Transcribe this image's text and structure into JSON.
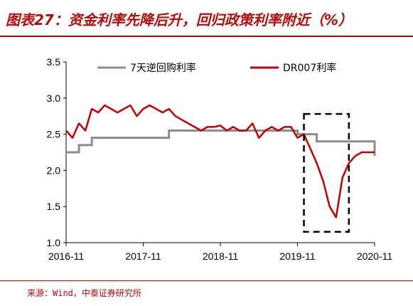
{
  "title": "图表27：资金利率先降后升，回归政策利率附近（%）",
  "source": "来源：Wind，中泰证券研究所",
  "chart_data": {
    "type": "line",
    "ylim": [
      1.0,
      3.5
    ],
    "yticks": [
      "1.0",
      "1.5",
      "2.0",
      "2.5",
      "3.0",
      "3.5"
    ],
    "xticks": [
      "2016-11",
      "2017-11",
      "2018-11",
      "2019-11",
      "2020-11"
    ],
    "xlim": [
      "2016-11",
      "2020-11"
    ],
    "legend": "top",
    "grid": false,
    "colors": {
      "series1": "#8c8c8c",
      "series2": "#c00000",
      "box": "#000000"
    },
    "series": [
      {
        "name": "7天逆回购利率",
        "x": [
          "2016-11",
          "2017-01",
          "2017-03",
          "2018-03",
          "2019-10",
          "2019-11",
          "2020-02",
          "2020-11"
        ],
        "values": [
          2.25,
          2.35,
          2.45,
          2.55,
          2.55,
          2.5,
          2.4,
          2.2
        ]
      },
      {
        "name": "DR007利率",
        "x": [
          "2016-11",
          "2016-12",
          "2017-01",
          "2017-02",
          "2017-03",
          "2017-04",
          "2017-05",
          "2017-06",
          "2017-07",
          "2017-08",
          "2017-09",
          "2017-10",
          "2017-11",
          "2017-12",
          "2018-01",
          "2018-02",
          "2018-03",
          "2018-04",
          "2018-05",
          "2018-06",
          "2018-07",
          "2018-08",
          "2018-09",
          "2018-10",
          "2018-11",
          "2018-12",
          "2019-01",
          "2019-02",
          "2019-03",
          "2019-04",
          "2019-05",
          "2019-06",
          "2019-07",
          "2019-08",
          "2019-09",
          "2019-10",
          "2019-11",
          "2019-12",
          "2020-01",
          "2020-02",
          "2020-03",
          "2020-04",
          "2020-05",
          "2020-06",
          "2020-07",
          "2020-08",
          "2020-09",
          "2020-10",
          "2020-11"
        ],
        "values": [
          2.55,
          2.45,
          2.65,
          2.55,
          2.85,
          2.8,
          2.9,
          2.85,
          2.8,
          2.85,
          2.9,
          2.75,
          2.85,
          2.9,
          2.85,
          2.8,
          2.85,
          2.75,
          2.7,
          2.65,
          2.6,
          2.55,
          2.6,
          2.6,
          2.62,
          2.55,
          2.6,
          2.55,
          2.55,
          2.65,
          2.45,
          2.55,
          2.6,
          2.55,
          2.6,
          2.6,
          2.45,
          2.5,
          2.3,
          2.1,
          1.85,
          1.5,
          1.35,
          1.9,
          2.1,
          2.2,
          2.25,
          2.25,
          2.25
        ]
      }
    ],
    "annotation_box": {
      "x0": "2019-12",
      "x1": "2020-07",
      "y0": 1.15,
      "y1": 2.78
    }
  }
}
